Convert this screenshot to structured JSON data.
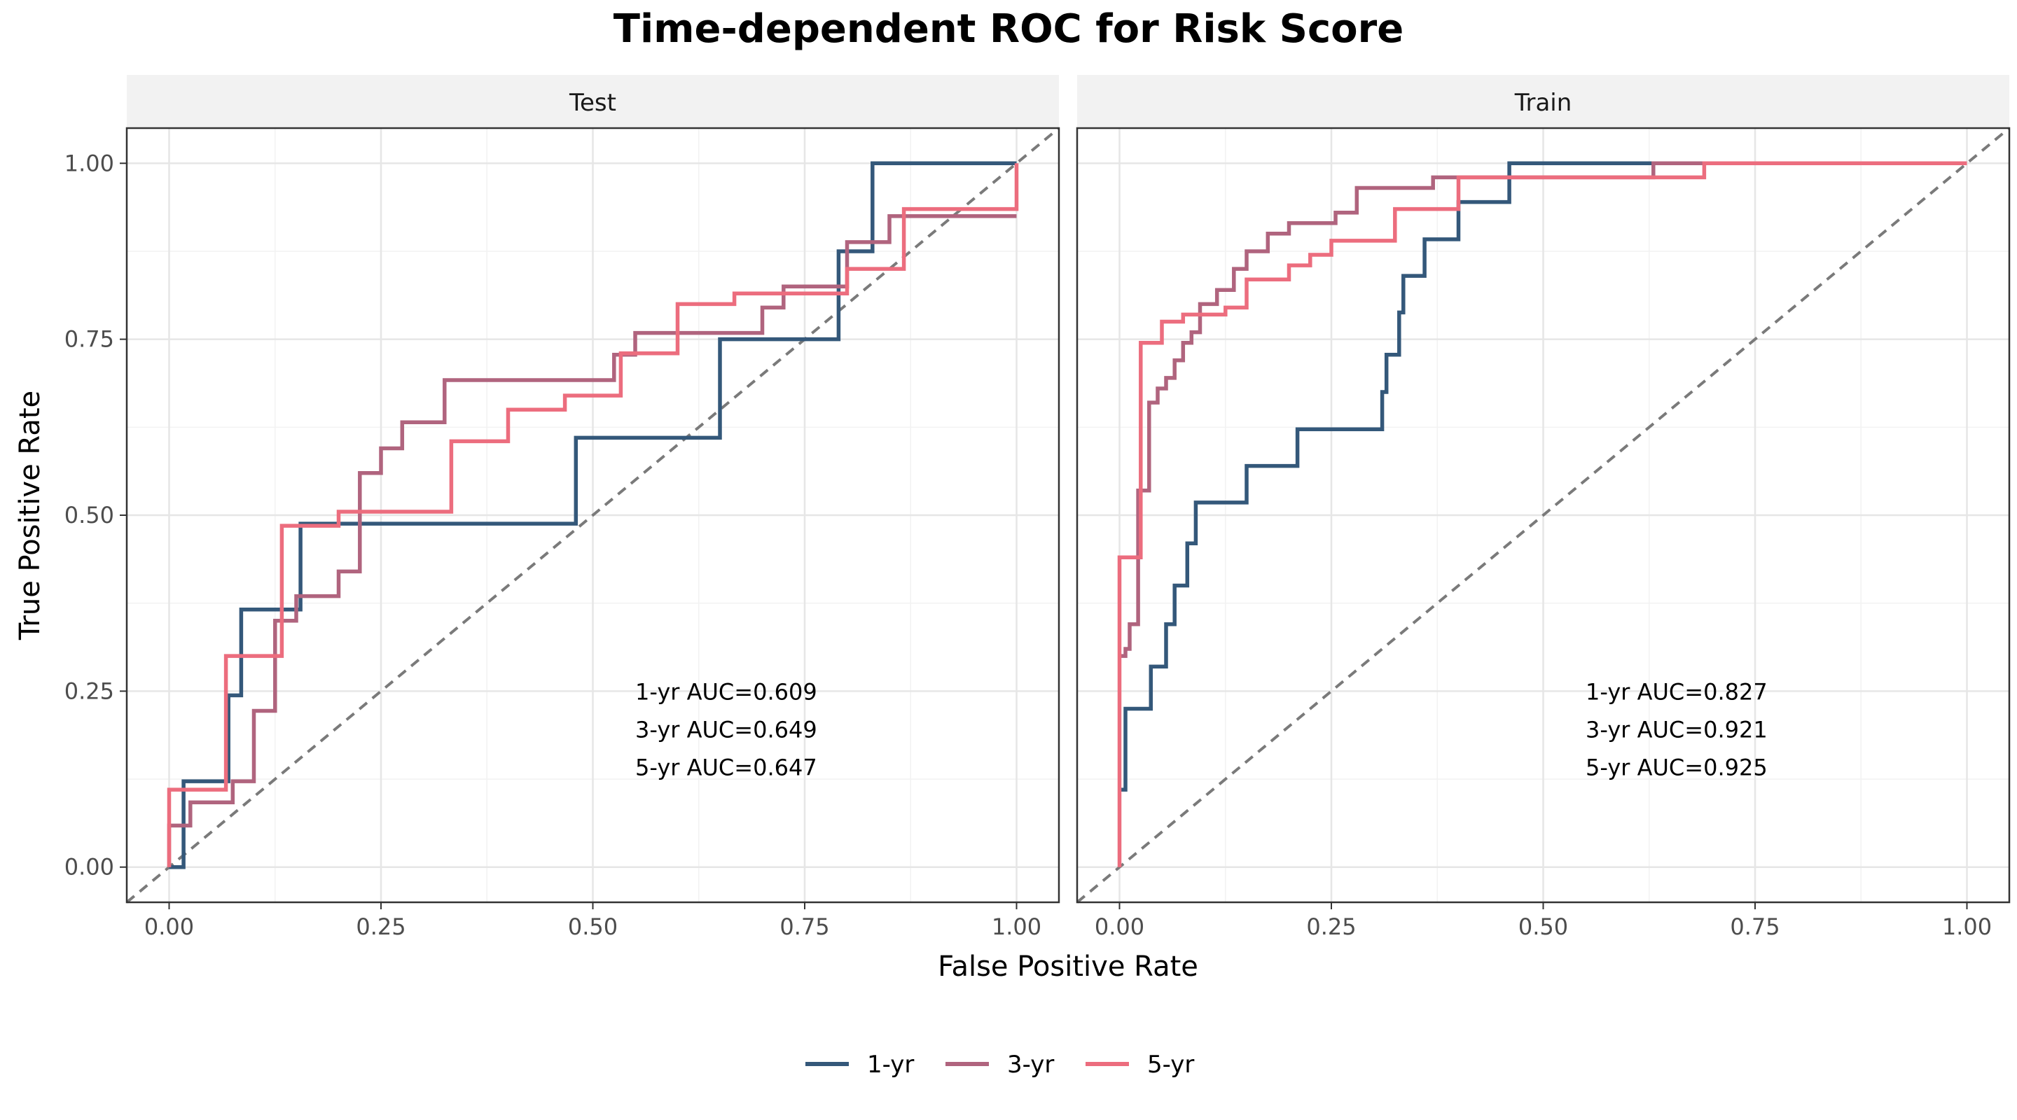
{
  "chart_data": {
    "type": "line",
    "title": "Time-dependent ROC for Risk Score",
    "xlabel": "False Positive Rate",
    "ylabel": "True Positive Rate",
    "xlim": [
      -0.05,
      1.05
    ],
    "ylim": [
      -0.05,
      1.05
    ],
    "x_ticks": [
      "0.00",
      "0.25",
      "0.50",
      "0.75",
      "1.00"
    ],
    "y_ticks": [
      "0.00",
      "0.25",
      "0.50",
      "0.75",
      "1.00"
    ],
    "grid": true,
    "reference_line": "diagonal (dashed)",
    "legend": {
      "position": "bottom",
      "entries": [
        "1-yr",
        "3-yr",
        "5-yr"
      ]
    },
    "colors": {
      "1-yr": "#34587a",
      "3-yr": "#b0647e",
      "5-yr": "#ec6d7e",
      "reference": "#7a7a7a",
      "panel_border": "#333333",
      "strip_fill": "#f2f2f2",
      "grid": "#e6e6e6"
    },
    "panels": [
      {
        "strip": "Test",
        "auc_labels": [
          "1-yr AUC=0.609",
          "3-yr AUC=0.649",
          "5-yr AUC=0.647"
        ],
        "series": [
          {
            "name": "1-yr",
            "x": [
              0,
              0,
              0.017,
              0.017,
              0.07,
              0.07,
              0.085,
              0.085,
              0.155,
              0.155,
              0.48,
              0.48,
              0.65,
              0.65,
              0.79,
              0.79,
              0.83,
              0.83,
              1.0,
              1.0
            ],
            "y": [
              0,
              0,
              0,
              0.122,
              0.122,
              0.244,
              0.244,
              0.366,
              0.366,
              0.488,
              0.488,
              0.61,
              0.61,
              0.75,
              0.75,
              0.875,
              0.875,
              1.0,
              1.0,
              1.0
            ]
          },
          {
            "name": "3-yr",
            "x": [
              0,
              0,
              0.025,
              0.025,
              0.075,
              0.075,
              0.1,
              0.1,
              0.125,
              0.125,
              0.15,
              0.15,
              0.2,
              0.2,
              0.225,
              0.225,
              0.25,
              0.25,
              0.275,
              0.275,
              0.325,
              0.325,
              0.525,
              0.525,
              0.55,
              0.55,
              0.7,
              0.7,
              0.725,
              0.725,
              0.8,
              0.8,
              0.85,
              0.85,
              1.0,
              1.0
            ],
            "y": [
              0,
              0.059,
              0.059,
              0.092,
              0.092,
              0.122,
              0.122,
              0.222,
              0.222,
              0.35,
              0.35,
              0.385,
              0.385,
              0.42,
              0.42,
              0.56,
              0.56,
              0.595,
              0.595,
              0.632,
              0.632,
              0.692,
              0.692,
              0.728,
              0.728,
              0.759,
              0.759,
              0.795,
              0.795,
              0.825,
              0.825,
              0.888,
              0.888,
              0.925,
              0.925,
              0.925
            ]
          },
          {
            "name": "5-yr",
            "x": [
              0,
              0,
              0.067,
              0.067,
              0.133,
              0.133,
              0.2,
              0.2,
              0.333,
              0.333,
              0.4,
              0.4,
              0.467,
              0.467,
              0.533,
              0.533,
              0.6,
              0.6,
              0.667,
              0.667,
              0.8,
              0.8,
              0.867,
              0.867,
              1.0,
              1.0
            ],
            "y": [
              0,
              0.11,
              0.11,
              0.3,
              0.3,
              0.485,
              0.485,
              0.505,
              0.505,
              0.605,
              0.605,
              0.65,
              0.65,
              0.67,
              0.67,
              0.73,
              0.73,
              0.8,
              0.8,
              0.815,
              0.815,
              0.85,
              0.85,
              0.935,
              0.935,
              1.0
            ]
          }
        ]
      },
      {
        "strip": "Train",
        "auc_labels": [
          "1-yr AUC=0.827",
          "3-yr AUC=0.921",
          "5-yr AUC=0.925"
        ],
        "series": [
          {
            "name": "1-yr",
            "x": [
              0,
              0.007,
              0.007,
              0.037,
              0.037,
              0.055,
              0.055,
              0.065,
              0.065,
              0.08,
              0.08,
              0.09,
              0.09,
              0.15,
              0.15,
              0.21,
              0.21,
              0.31,
              0.31,
              0.315,
              0.315,
              0.33,
              0.33,
              0.335,
              0.335,
              0.36,
              0.36,
              0.4,
              0.4,
              0.46,
              0.46,
              0.63,
              0.63,
              1.0
            ],
            "y": [
              0.11,
              0.11,
              0.225,
              0.225,
              0.285,
              0.285,
              0.345,
              0.345,
              0.4,
              0.4,
              0.46,
              0.46,
              0.518,
              0.518,
              0.57,
              0.57,
              0.622,
              0.622,
              0.675,
              0.675,
              0.728,
              0.728,
              0.788,
              0.788,
              0.84,
              0.84,
              0.892,
              0.892,
              0.945,
              0.945,
              1.0,
              1.0,
              1.0,
              1.0
            ]
          },
          {
            "name": "3-yr",
            "x": [
              0,
              0.007,
              0.007,
              0.012,
              0.012,
              0.022,
              0.022,
              0.035,
              0.035,
              0.045,
              0.045,
              0.055,
              0.055,
              0.065,
              0.065,
              0.075,
              0.075,
              0.085,
              0.085,
              0.095,
              0.095,
              0.115,
              0.115,
              0.135,
              0.135,
              0.15,
              0.15,
              0.175,
              0.175,
              0.2,
              0.2,
              0.255,
              0.255,
              0.28,
              0.28,
              0.37,
              0.37,
              0.39,
              0.39,
              0.63,
              0.63,
              1.0
            ],
            "y": [
              0.3,
              0.3,
              0.31,
              0.31,
              0.345,
              0.345,
              0.535,
              0.535,
              0.66,
              0.66,
              0.68,
              0.68,
              0.695,
              0.695,
              0.72,
              0.72,
              0.745,
              0.745,
              0.76,
              0.76,
              0.8,
              0.8,
              0.82,
              0.82,
              0.85,
              0.85,
              0.875,
              0.875,
              0.9,
              0.9,
              0.915,
              0.915,
              0.93,
              0.93,
              0.965,
              0.965,
              0.98,
              0.98,
              0.98,
              0.98,
              1.0,
              1.0
            ]
          },
          {
            "name": "5-yr",
            "x": [
              0,
              0,
              0.025,
              0.025,
              0.05,
              0.05,
              0.075,
              0.075,
              0.125,
              0.125,
              0.15,
              0.15,
              0.2,
              0.2,
              0.225,
              0.225,
              0.25,
              0.25,
              0.325,
              0.325,
              0.4,
              0.4,
              0.69,
              0.69,
              1.0
            ],
            "y": [
              0,
              0.44,
              0.44,
              0.745,
              0.745,
              0.775,
              0.775,
              0.785,
              0.785,
              0.795,
              0.795,
              0.835,
              0.835,
              0.855,
              0.855,
              0.87,
              0.87,
              0.89,
              0.89,
              0.935,
              0.935,
              0.98,
              0.98,
              1.0,
              1.0
            ]
          }
        ]
      }
    ]
  }
}
